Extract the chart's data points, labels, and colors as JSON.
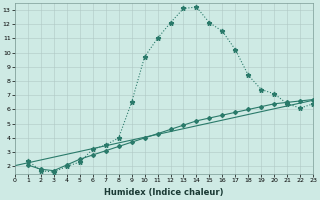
{
  "title": "",
  "xlabel": "Humidex (Indice chaleur)",
  "background_color": "#ceeae4",
  "grid_color": "#b0c8c4",
  "line_color": "#2a7a6a",
  "xlim": [
    0,
    23
  ],
  "ylim": [
    1.5,
    13.5
  ],
  "xticks": [
    0,
    1,
    2,
    3,
    4,
    5,
    6,
    7,
    8,
    9,
    10,
    11,
    12,
    13,
    14,
    15,
    16,
    17,
    18,
    19,
    20,
    21,
    22,
    23
  ],
  "yticks": [
    2,
    3,
    4,
    5,
    6,
    7,
    8,
    9,
    10,
    11,
    12,
    13
  ],
  "curve1_x": [
    1,
    2,
    3,
    4,
    5,
    6,
    7,
    8,
    9,
    10,
    11,
    12,
    13,
    14,
    15,
    16,
    17,
    18,
    19,
    20,
    21,
    22,
    23
  ],
  "curve1_y": [
    2.4,
    1.7,
    1.6,
    2.0,
    2.3,
    3.2,
    3.5,
    4.0,
    6.5,
    9.7,
    11.0,
    12.1,
    13.1,
    13.2,
    12.1,
    11.5,
    10.2,
    8.4,
    7.4,
    7.1,
    6.4,
    6.1,
    6.4
  ],
  "curve2_x": [
    1,
    2,
    3,
    4,
    5,
    6,
    7,
    8,
    9,
    10,
    11,
    12,
    13,
    14,
    15,
    16,
    17,
    18,
    19,
    20,
    21,
    22,
    23
  ],
  "curve2_y": [
    2.1,
    1.8,
    1.7,
    2.1,
    2.5,
    2.8,
    3.1,
    3.4,
    3.7,
    4.0,
    4.3,
    4.6,
    4.9,
    5.2,
    5.4,
    5.6,
    5.8,
    6.0,
    6.2,
    6.4,
    6.5,
    6.6,
    6.7
  ],
  "curve3_y_start": 2.05,
  "curve3_y_end": 6.65,
  "xlabel_fontsize": 6,
  "tick_fontsize": 4.5,
  "linewidth": 0.8,
  "marker_size": 2.0
}
